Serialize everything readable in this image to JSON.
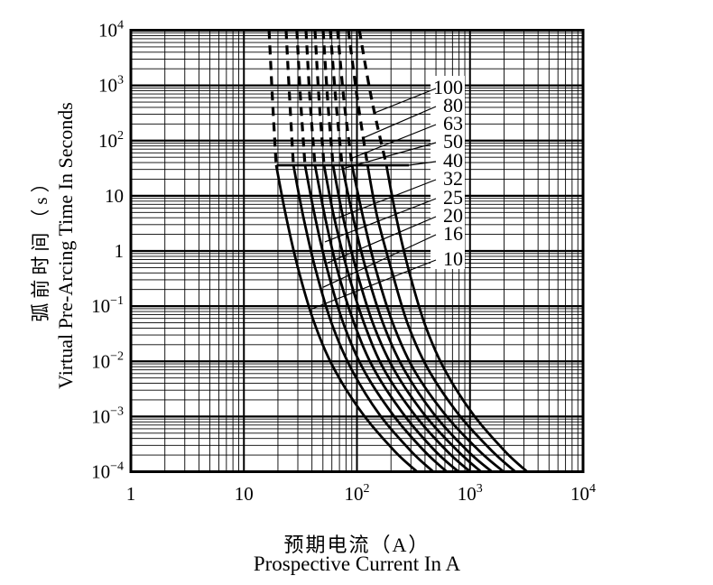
{
  "figure": {
    "background": "#ffffff",
    "ink_color": "#000000",
    "description": "Fuse time-current characteristic curves, log-log grid"
  },
  "y_axis": {
    "title_zh": "弧前时间（s）",
    "title_en": "Virtual Pre-Arcing Time In Seconds",
    "ticks": [
      {
        "base": "10",
        "exp": "4",
        "value": 10000
      },
      {
        "base": "10",
        "exp": "3",
        "value": 1000
      },
      {
        "base": "10",
        "exp": "2",
        "value": 100
      },
      {
        "base": "10",
        "exp": "",
        "value": 10
      },
      {
        "base": "1",
        "exp": "",
        "value": 1
      },
      {
        "base": "10",
        "exp": "−1",
        "value": 0.1
      },
      {
        "base": "10",
        "exp": "−2",
        "value": 0.01
      },
      {
        "base": "10",
        "exp": "−3",
        "value": 0.001
      },
      {
        "base": "10",
        "exp": "−4",
        "value": 0.0001
      }
    ]
  },
  "x_axis": {
    "title_zh": "预期电流（A）",
    "title_en": "Prospective Current In A",
    "ticks": [
      {
        "base": "1",
        "exp": "",
        "value": 1
      },
      {
        "base": "10",
        "exp": "",
        "value": 10
      },
      {
        "base": "10",
        "exp": "2",
        "value": 100
      },
      {
        "base": "10",
        "exp": "3",
        "value": 1000
      },
      {
        "base": "10",
        "exp": "4",
        "value": 10000
      }
    ]
  },
  "chart_data": {
    "type": "line",
    "x_scale": "log",
    "y_scale": "log",
    "x_range": [
      1,
      10000
    ],
    "y_range": [
      0.0001,
      10000
    ],
    "xlabel": "Prospective Current In A / 预期电流（A）",
    "ylabel": "Virtual Pre-Arcing Time In Seconds / 弧前时间（s）",
    "grid": "log-log with minor lines 2-9 in every decade, all black",
    "legend_position": "stacked label column inside plot on white box, leader lines to curves",
    "curve_style": "dashed above ~36 s, solid below",
    "times_s": [
      10000,
      560,
      36,
      4.2,
      0.44,
      0.046,
      0.0069,
      0.00105,
      0.00023,
      0.0001
    ],
    "dash_solid_split_time_s": 36,
    "series": [
      {
        "rating_a": 10,
        "label": "10",
        "currents_a": [
          16.7,
          17.9,
          19.3,
          23.6,
          30.5,
          42.5,
          63.7,
          115,
          218,
          340
        ]
      },
      {
        "rating_a": 16,
        "label": "16",
        "currents_a": [
          23.6,
          25.4,
          27.4,
          33.5,
          43.3,
          60.3,
          90.4,
          160,
          304,
          473
        ]
      },
      {
        "rating_a": 20,
        "label": "20",
        "currents_a": [
          29.4,
          31.7,
          34.7,
          42.5,
          55.0,
          76.6,
          115,
          210,
          400,
          623
        ]
      },
      {
        "rating_a": 25,
        "label": "25",
        "currents_a": [
          35.4,
          38.4,
          42.5,
          52.1,
          67.3,
          95.5,
          143,
          263,
          500,
          791
        ]
      },
      {
        "rating_a": 32,
        "label": "32",
        "currents_a": [
          42.5,
          46.2,
          51.1,
          62.6,
          82.4,
          117,
          175,
          327,
          634,
          1005
        ]
      },
      {
        "rating_a": 40,
        "label": "40",
        "currents_a": [
          50.2,
          55.0,
          61.4,
          75.2,
          99.1,
          140,
          214,
          400,
          791,
          1253
        ]
      },
      {
        "rating_a": 50,
        "label": "50",
        "currents_a": [
          58.1,
          64.9,
          73.8,
          92.1,
          121,
          172,
          263,
          490,
          969,
          1562
        ]
      },
      {
        "rating_a": 63,
        "label": "63",
        "currents_a": [
          67.4,
          76.6,
          90.4,
          113,
          148,
          210,
          321,
          611,
          1230,
          1983
        ]
      },
      {
        "rating_a": 80,
        "label": "80",
        "currents_a": [
          84.0,
          101,
          124,
          151,
          203,
          283,
          431,
          806,
          1591,
          2519
        ]
      },
      {
        "rating_a": 100,
        "label": "100",
        "currents_a": [
          105,
          135,
          182,
          222,
          288,
          400,
          600,
          1081,
          2058,
          3199
        ]
      }
    ],
    "annotation_line": {
      "time_s": 35.8,
      "current_from_a": 19.5,
      "current_to_a": 288
    },
    "curve_labels": [
      {
        "text": "100",
        "target_current_a": 143,
        "target_time_s": 318
      },
      {
        "text": "80",
        "target_current_a": 113,
        "target_time_s": 111
      },
      {
        "text": "63",
        "target_current_a": 87,
        "target_time_s": 46.6
      },
      {
        "text": "50",
        "target_current_a": 74,
        "target_time_s": 30.8
      },
      {
        "text": "40",
        "target_current_a": 288,
        "target_time_s": 35.8
      },
      {
        "text": "32",
        "target_current_a": 62.6,
        "target_time_s": 3.74
      },
      {
        "text": "25",
        "target_current_a": 52.1,
        "target_time_s": 1.46
      },
      {
        "text": "20",
        "target_current_a": 53.0,
        "target_time_s": 0.59
      },
      {
        "text": "16",
        "target_current_a": 50.2,
        "target_time_s": 0.22
      },
      {
        "text": "10",
        "target_current_a": 40.3,
        "target_time_s": 0.09
      }
    ]
  }
}
